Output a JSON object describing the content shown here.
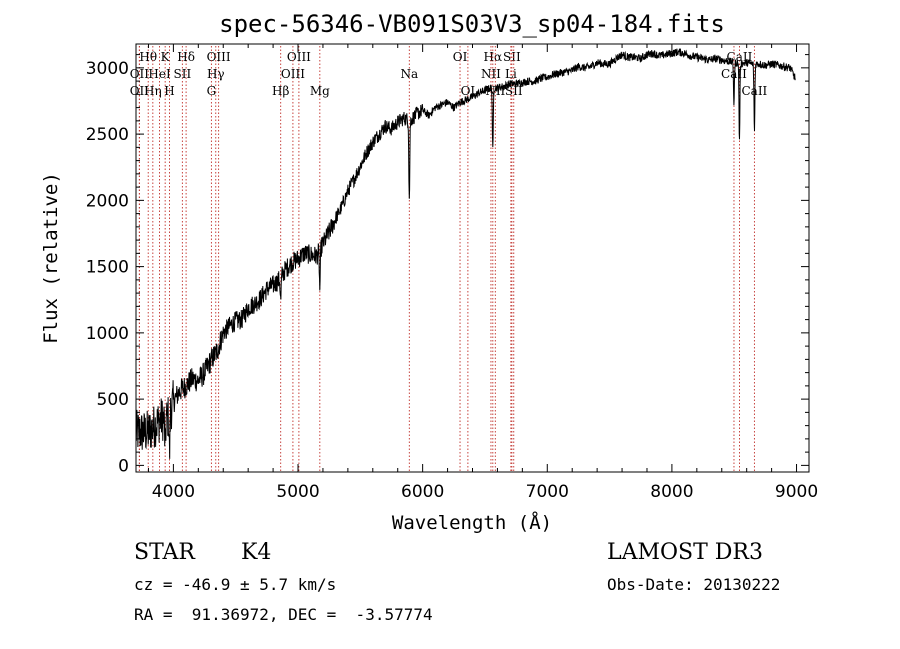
{
  "chart_data": {
    "type": "line",
    "title": "spec-56346-VB091S03V3_sp04-184.fits",
    "xlabel": "Wavelength (Å)",
    "ylabel": "Flux (relative)",
    "xlim": [
      3700,
      9100
    ],
    "ylim": [
      -50,
      3180
    ],
    "xticks": [
      4000,
      5000,
      6000,
      7000,
      8000,
      9000
    ],
    "yticks": [
      0,
      500,
      1000,
      1500,
      2000,
      2500,
      3000
    ],
    "grid": false,
    "series": [
      {
        "name": "flux",
        "x": [
          3700,
          3760,
          3800,
          3850,
          3900,
          3950,
          4000,
          4050,
          4100,
          4150,
          4200,
          4250,
          4300,
          4350,
          4400,
          4450,
          4500,
          4550,
          4600,
          4650,
          4700,
          4750,
          4800,
          4850,
          4900,
          4950,
          5000,
          5050,
          5100,
          5150,
          5200,
          5250,
          5300,
          5350,
          5400,
          5450,
          5500,
          5550,
          5600,
          5650,
          5700,
          5750,
          5800,
          5850,
          5900,
          5950,
          6000,
          6050,
          6100,
          6150,
          6200,
          6250,
          6300,
          6350,
          6400,
          6450,
          6500,
          6550,
          6600,
          6650,
          6700,
          6750,
          6800,
          6850,
          6900,
          6950,
          7000,
          7050,
          7100,
          7150,
          7200,
          7250,
          7300,
          7350,
          7400,
          7450,
          7500,
          7550,
          7600,
          7650,
          7700,
          7750,
          7800,
          7850,
          7900,
          7950,
          8000,
          8050,
          8100,
          8150,
          8200,
          8250,
          8300,
          8350,
          8400,
          8450,
          8500,
          8550,
          8600,
          8650,
          8700,
          8750,
          8800,
          8850,
          8900,
          8950,
          8990
        ],
        "y": [
          250,
          250,
          250,
          300,
          350,
          350,
          480,
          560,
          600,
          650,
          640,
          700,
          790,
          860,
          1000,
          1050,
          1090,
          1100,
          1190,
          1220,
          1260,
          1330,
          1360,
          1400,
          1480,
          1530,
          1560,
          1600,
          1590,
          1580,
          1670,
          1760,
          1860,
          1950,
          2070,
          2160,
          2260,
          2360,
          2440,
          2500,
          2560,
          2540,
          2590,
          2620,
          2600,
          2650,
          2680,
          2640,
          2700,
          2720,
          2740,
          2700,
          2740,
          2760,
          2780,
          2810,
          2830,
          2850,
          2850,
          2860,
          2880,
          2880,
          2890,
          2900,
          2900,
          2920,
          2930,
          2950,
          2960,
          2970,
          2980,
          3010,
          3000,
          3010,
          3040,
          3030,
          3030,
          3070,
          3100,
          3080,
          3080,
          3070,
          3100,
          3110,
          3090,
          3100,
          3110,
          3120,
          3110,
          3090,
          3080,
          3070,
          3060,
          3070,
          3060,
          3050,
          3040,
          3030,
          3040,
          3030,
          3030,
          3020,
          3030,
          3020,
          3010,
          3000,
          2920
        ],
        "absorption_features": [
          {
            "wave": 3934,
            "depth": 250
          },
          {
            "wave": 3969,
            "depth": 300
          },
          {
            "wave": 4861,
            "depth": 180
          },
          {
            "wave": 5175,
            "depth": 300
          },
          {
            "wave": 5893,
            "depth": 600
          },
          {
            "wave": 6563,
            "depth": 480
          },
          {
            "wave": 8498,
            "depth": 320
          },
          {
            "wave": 8542,
            "depth": 600
          },
          {
            "wave": 8662,
            "depth": 520
          }
        ]
      }
    ],
    "line_markers": [
      {
        "label": "Hθ",
        "wave": 3798,
        "row": 1
      },
      {
        "label": "OII",
        "wave": 3727,
        "row": 2
      },
      {
        "label": "OII",
        "wave": 3727,
        "row": 3
      },
      {
        "label": "Hη",
        "wave": 3835,
        "row": 3
      },
      {
        "label": "K",
        "wave": 3934,
        "row": 1
      },
      {
        "label": "HeI",
        "wave": 3889,
        "row": 2
      },
      {
        "label": "H",
        "wave": 3969,
        "row": 3
      },
      {
        "label": "SII",
        "wave": 4072,
        "row": 2
      },
      {
        "label": "Hδ",
        "wave": 4102,
        "row": 1
      },
      {
        "label": "OIII",
        "wave": 4363,
        "row": 1
      },
      {
        "label": "Hγ",
        "wave": 4340,
        "row": 2
      },
      {
        "label": "G",
        "wave": 4305,
        "row": 3
      },
      {
        "label": "Hβ",
        "wave": 4861,
        "row": 3
      },
      {
        "label": "OIII",
        "wave": 5007,
        "row": 1
      },
      {
        "label": "OIII",
        "wave": 4959,
        "row": 2
      },
      {
        "label": "Mg",
        "wave": 5175,
        "row": 3
      },
      {
        "label": "Na",
        "wave": 5893,
        "row": 2
      },
      {
        "label": "OI",
        "wave": 6300,
        "row": 1
      },
      {
        "label": "OI",
        "wave": 6363,
        "row": 3
      },
      {
        "label": "Hα",
        "wave": 6563,
        "row": 1
      },
      {
        "label": "NII",
        "wave": 6548,
        "row": 2
      },
      {
        "label": "NII",
        "wave": 6583,
        "row": 3
      },
      {
        "label": "SII",
        "wave": 6716,
        "row": 1
      },
      {
        "label": "Li",
        "wave": 6708,
        "row": 2
      },
      {
        "label": "SII",
        "wave": 6731,
        "row": 3
      },
      {
        "label": "CaII",
        "wave": 8542,
        "row": 1
      },
      {
        "label": "CaII",
        "wave": 8498,
        "row": 2
      },
      {
        "label": "CaII",
        "wave": 8662,
        "row": 3
      }
    ]
  },
  "info": {
    "class_label": "STAR",
    "subclass": "K4",
    "survey": "LAMOST DR3",
    "cz": "cz = -46.9 ± 5.7 km/s",
    "obs_date": "Obs-Date: 20130222",
    "radec": "RA =  91.36972, DEC =  -3.57774"
  }
}
